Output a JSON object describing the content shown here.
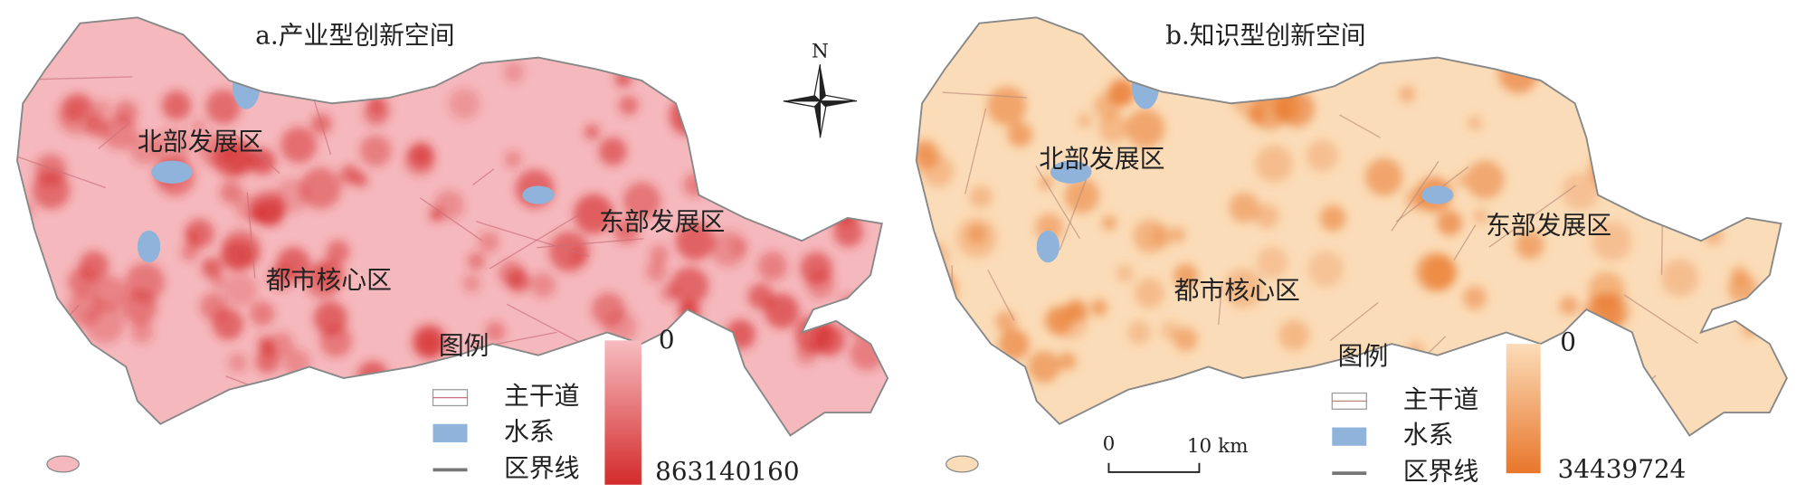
{
  "north": "N",
  "scale_bar": {
    "start": "0",
    "end": "10 km"
  },
  "maps": [
    {
      "title": "a.产业型创新空间",
      "regions": [
        "北部发展区",
        "东部发展区",
        "都市核心区"
      ],
      "legend": {
        "title": "图例",
        "items": [
          "主干道",
          "水系",
          "区界线"
        ],
        "min": 0,
        "max": 863140160
      }
    },
    {
      "title": "b.知识型创新空间",
      "regions": [
        "北部发展区",
        "东部发展区",
        "都市核心区"
      ],
      "legend": {
        "title": "图例",
        "items": [
          "主干道",
          "水系",
          "区界线"
        ],
        "min": 0,
        "max": 34439724
      }
    }
  ]
}
